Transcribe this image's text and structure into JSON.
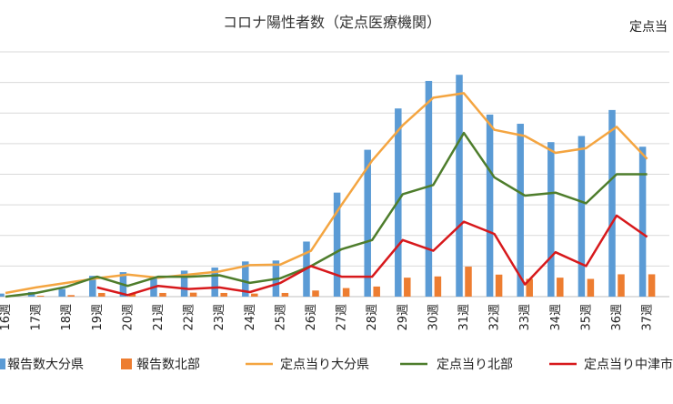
{
  "chart_data": {
    "type": "bar+line",
    "title": "コロナ陽性者数（定点医療機関）",
    "right_axis_label": "定点当",
    "categories": [
      "16週",
      "17週",
      "18週",
      "19週",
      "20週",
      "21週",
      "22週",
      "23週",
      "24週",
      "25週",
      "26週",
      "27週",
      "28週",
      "29週",
      "30週",
      "31週",
      "32週",
      "33週",
      "34週",
      "35週",
      "36週",
      "37週"
    ],
    "ylim": [
      0,
      8
    ],
    "gridlines": [
      0,
      1,
      2,
      3,
      4,
      5,
      6,
      7,
      8
    ],
    "series": [
      {
        "name": "報告数大分県",
        "kind": "bar",
        "color": "#5B9BD5",
        "values": [
          0.1,
          0.15,
          0.25,
          0.68,
          0.8,
          0.62,
          0.85,
          0.95,
          1.15,
          1.18,
          1.8,
          3.4,
          4.8,
          6.15,
          7.05,
          7.25,
          5.95,
          5.65,
          5.05,
          5.25,
          6.1,
          4.9
        ]
      },
      {
        "name": "報告数北部",
        "kind": "bar",
        "color": "#ED7D31",
        "values": [
          0.02,
          0.03,
          0.05,
          0.12,
          0.1,
          0.12,
          0.13,
          0.12,
          0.1,
          0.12,
          0.2,
          0.28,
          0.33,
          0.62,
          0.66,
          0.98,
          0.72,
          0.58,
          0.62,
          0.58,
          0.73,
          0.73
        ]
      },
      {
        "name": "定点当り大分県",
        "kind": "line",
        "color": "#F4A541",
        "values": [
          0.12,
          0.3,
          0.45,
          0.6,
          0.72,
          0.62,
          0.72,
          0.82,
          1.03,
          1.05,
          1.5,
          3.0,
          4.45,
          5.6,
          6.5,
          6.65,
          5.45,
          5.25,
          4.7,
          4.85,
          5.55,
          4.5
        ]
      },
      {
        "name": "定点当り北部",
        "kind": "line",
        "color": "#4E7D2C",
        "values": [
          0.0,
          0.12,
          0.32,
          0.65,
          0.35,
          0.65,
          0.65,
          0.7,
          0.45,
          0.6,
          1.0,
          1.55,
          1.85,
          3.35,
          3.65,
          5.35,
          3.9,
          3.3,
          3.4,
          3.05,
          4.0,
          4.0
        ]
      },
      {
        "name": "定点当り中津市",
        "kind": "line",
        "color": "#D7191C",
        "values": [
          null,
          null,
          null,
          0.3,
          0.05,
          0.35,
          0.25,
          0.3,
          0.15,
          0.45,
          1.0,
          0.65,
          0.65,
          1.85,
          1.5,
          2.45,
          2.05,
          0.4,
          1.45,
          1.0,
          2.65,
          1.95
        ]
      }
    ],
    "legend": {
      "position": "bottom",
      "labels": [
        "報告数大分県",
        "報告数北部",
        "定点当り大分県",
        "定点当り北部",
        "定点当り中津市"
      ]
    }
  }
}
